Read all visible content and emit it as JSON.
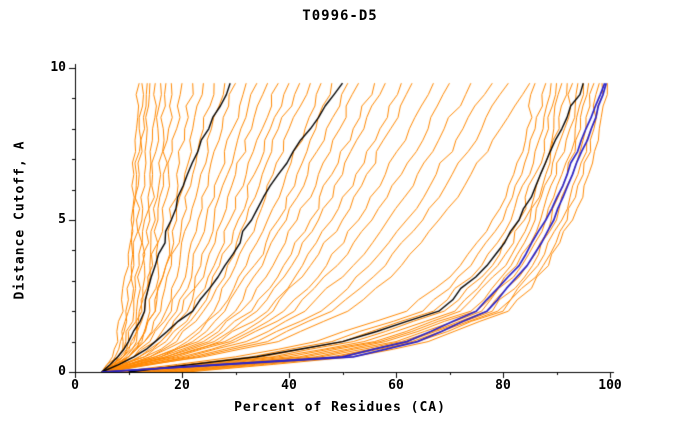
{
  "title": "T0996-D5",
  "chart_data": {
    "type": "line",
    "title": "T0996-D5",
    "xlabel": "Percent of Residues (CA)",
    "ylabel": "Distance Cutoff, A",
    "xlim": [
      0,
      100
    ],
    "ylim": [
      0,
      10
    ],
    "x_ticks": [
      0,
      20,
      40,
      60,
      80,
      100
    ],
    "y_ticks": [
      0,
      5,
      10
    ],
    "x_minor_step": 10,
    "y_minor_step": 1,
    "grid": false,
    "legend": "none",
    "colors": {
      "model": "#ff8800",
      "reference": "#000000",
      "best": "#2a23c8",
      "background": "#ffffff",
      "axis": "#000000"
    },
    "y_levels": [
      0,
      0.5,
      1,
      2,
      3.5,
      5,
      6.5,
      8,
      9.5
    ],
    "orange_series": [
      [
        5,
        7,
        8,
        9,
        10,
        10.5,
        11,
        11.5,
        12
      ],
      [
        5,
        7.5,
        8.5,
        9.5,
        10.5,
        11,
        11.5,
        12,
        12.5
      ],
      [
        5,
        8,
        9,
        10,
        11,
        11.5,
        12,
        13,
        13.5
      ],
      [
        6,
        8,
        9.5,
        11,
        12,
        12.5,
        13,
        13.5,
        14
      ],
      [
        5,
        8.5,
        10,
        11.5,
        12.5,
        13,
        14,
        14.5,
        15
      ],
      [
        6,
        9,
        10.5,
        12,
        13,
        14,
        14.5,
        15.5,
        16
      ],
      [
        5,
        9,
        11,
        12.5,
        14,
        15,
        16,
        16.5,
        17
      ],
      [
        6,
        9.5,
        11.5,
        13,
        14.5,
        15.5,
        16.5,
        17.5,
        18
      ],
      [
        6,
        10,
        12,
        14,
        15.5,
        16.5,
        17.5,
        19,
        20
      ],
      [
        6,
        10,
        12.5,
        15,
        17,
        18,
        19,
        20.5,
        22
      ],
      [
        5,
        9,
        12,
        15,
        17,
        19,
        20.5,
        22,
        24
      ],
      [
        6,
        10,
        13,
        16,
        18,
        20,
        22,
        24,
        26
      ],
      [
        5,
        10,
        13,
        17,
        19.5,
        21.5,
        23.5,
        25.5,
        28
      ],
      [
        6,
        11,
        14,
        18,
        21,
        23,
        25,
        27.5,
        30
      ],
      [
        5,
        11,
        15,
        19,
        22,
        24.5,
        27,
        29.5,
        32
      ],
      [
        6,
        12,
        16,
        20,
        23.5,
        26,
        28.5,
        31,
        34
      ],
      [
        5,
        12,
        16,
        21,
        24.5,
        27.5,
        30,
        33,
        36
      ],
      [
        6,
        13,
        17,
        22,
        26,
        29,
        32,
        35,
        38
      ],
      [
        5,
        13,
        18,
        23,
        27,
        30.5,
        33.5,
        36.5,
        40
      ],
      [
        6,
        14,
        19,
        24,
        28.5,
        32,
        35,
        38,
        42
      ],
      [
        5,
        14,
        20,
        26,
        30,
        34,
        37,
        40,
        44
      ],
      [
        6,
        15,
        21,
        27,
        32,
        36,
        39.5,
        43,
        46
      ],
      [
        5,
        15,
        22,
        28,
        33.5,
        38,
        41.5,
        45,
        48
      ],
      [
        6,
        16,
        23,
        30,
        35,
        39.5,
        43.5,
        47,
        51
      ],
      [
        5,
        16,
        24,
        31,
        37,
        41.5,
        45.5,
        49.5,
        53
      ],
      [
        6,
        17,
        25,
        33,
        39,
        44,
        48,
        52,
        56
      ],
      [
        5,
        17,
        26,
        34,
        40.5,
        45.5,
        50,
        54,
        58
      ],
      [
        6,
        18,
        27,
        36,
        42.5,
        48,
        52.5,
        57,
        61
      ],
      [
        5,
        18,
        28,
        37,
        44,
        50,
        54.5,
        59,
        63
      ],
      [
        6,
        19,
        29,
        39,
        47,
        53,
        58,
        62.5,
        67
      ],
      [
        5,
        20,
        30,
        41,
        49,
        55.5,
        61,
        66,
        70
      ],
      [
        6,
        21,
        32,
        43,
        52,
        58.5,
        64,
        69,
        74
      ],
      [
        5,
        22,
        34,
        46,
        55,
        62,
        67.5,
        72.5,
        78
      ],
      [
        6,
        23,
        36,
        48,
        58,
        65,
        70.5,
        76,
        81
      ],
      [
        5,
        24,
        38,
        51,
        61,
        68,
        74,
        79.5,
        85
      ],
      [
        8,
        30,
        45,
        62,
        72,
        78,
        82,
        84.5,
        86
      ],
      [
        9,
        33,
        48,
        65,
        74,
        80,
        83.5,
        86,
        88
      ],
      [
        10,
        35,
        50,
        67,
        76,
        81.5,
        85,
        87.5,
        89
      ],
      [
        11,
        37,
        52,
        69,
        78,
        83,
        86,
        88.5,
        90
      ],
      [
        12,
        38,
        54,
        71,
        79,
        84,
        87,
        89.5,
        91
      ],
      [
        13,
        40,
        56,
        72,
        80.5,
        85,
        88,
        90.5,
        92
      ],
      [
        14,
        42,
        57,
        74,
        81.5,
        86,
        89,
        91.5,
        93
      ],
      [
        15,
        43,
        58,
        75,
        82.5,
        87,
        90,
        92.5,
        94
      ],
      [
        16,
        45,
        60,
        76,
        83.5,
        88,
        91,
        93.5,
        95
      ],
      [
        17,
        46,
        61,
        77,
        84.5,
        89,
        92,
        94.5,
        96
      ],
      [
        18,
        48,
        62,
        78,
        85.5,
        90,
        93,
        95.5,
        97
      ],
      [
        19,
        49,
        63,
        79,
        86.5,
        91,
        94,
        96.5,
        98
      ],
      [
        20,
        50,
        64,
        80,
        87.5,
        92,
        95,
        97,
        98.5
      ],
      [
        21,
        52,
        66,
        81,
        88.5,
        93,
        96,
        98,
        99.5
      ]
    ],
    "black_series": [
      [
        5,
        8,
        10,
        13,
        15,
        18,
        21,
        25,
        29
      ],
      [
        5,
        11,
        15,
        22,
        28,
        33,
        38,
        44,
        50
      ],
      [
        10,
        34,
        50,
        68,
        77,
        83,
        87,
        91,
        95
      ]
    ],
    "blue_series": [
      [
        5,
        50,
        62,
        75,
        83,
        88,
        92,
        95.5,
        99
      ],
      [
        5,
        52,
        64,
        77,
        84.5,
        89.5,
        93,
        96.5,
        99.3
      ]
    ]
  }
}
